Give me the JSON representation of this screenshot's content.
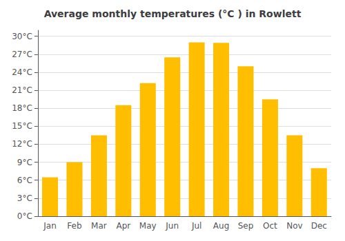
{
  "chart_data": {
    "type": "bar",
    "title": "Average monthly temperatures (°C ) in Rowlett",
    "categories": [
      "Jan",
      "Feb",
      "Mar",
      "Apr",
      "May",
      "Jun",
      "Jul",
      "Aug",
      "Sep",
      "Oct",
      "Nov",
      "Dec"
    ],
    "values": [
      6.5,
      9.0,
      13.5,
      18.5,
      22.2,
      26.5,
      29.0,
      28.9,
      25.0,
      19.5,
      13.5,
      8.0
    ],
    "color": "#FFBF00",
    "ylim": [
      0,
      31
    ],
    "yticks": [
      {
        "value": 0,
        "label": "0°C"
      },
      {
        "value": 3,
        "label": "3°C"
      },
      {
        "value": 6,
        "label": "6°C"
      },
      {
        "value": 9,
        "label": "9°C"
      },
      {
        "value": 12,
        "label": "12°C"
      },
      {
        "value": 15,
        "label": "15°C"
      },
      {
        "value": 18,
        "label": "18°C"
      },
      {
        "value": 21,
        "label": "21°C"
      },
      {
        "value": 24,
        "label": "24°C"
      },
      {
        "value": 27,
        "label": "27°C"
      },
      {
        "value": 30,
        "label": "30°C"
      }
    ],
    "grid": true
  }
}
